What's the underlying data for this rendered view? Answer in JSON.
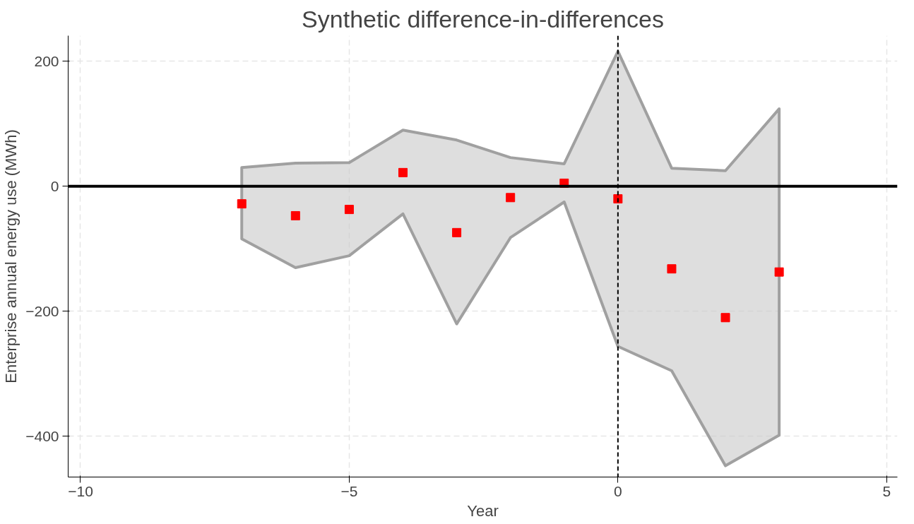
{
  "chart_data": {
    "type": "scatter",
    "title": "Synthetic difference-in-differences",
    "xlabel": "Year",
    "ylabel": "Enterprise annual energy use (MWh)",
    "x": [
      -7,
      -6,
      -5,
      -4,
      -3,
      -2,
      -1,
      0,
      1,
      2,
      3
    ],
    "series": [
      {
        "color": "#ff0000",
        "values": [
          -28,
          -47,
          -37,
          22,
          -74,
          -18,
          5,
          -20,
          -132,
          -210,
          -137
        ],
        "lower": [
          -84,
          -130,
          -111,
          -44,
          -220,
          -82,
          -25,
          -256,
          -295,
          -447,
          -398
        ],
        "upper": [
          30,
          37,
          38,
          90,
          74,
          46,
          36,
          216,
          29,
          25,
          124
        ]
      }
    ],
    "xlim": [
      -10.23,
      5.2
    ],
    "ylim": [
      -465,
      241
    ],
    "xticks": [
      -10,
      -5,
      0,
      5
    ],
    "yticks": [
      -400,
      -200,
      0,
      200
    ],
    "grid": true,
    "marker": "square",
    "ref_lines": [
      {
        "axis": "y",
        "value": 0,
        "color": "#000000",
        "line_style": "solid"
      },
      {
        "axis": "x",
        "value": 0,
        "color": "#000000",
        "line_style": "dashed"
      }
    ]
  }
}
